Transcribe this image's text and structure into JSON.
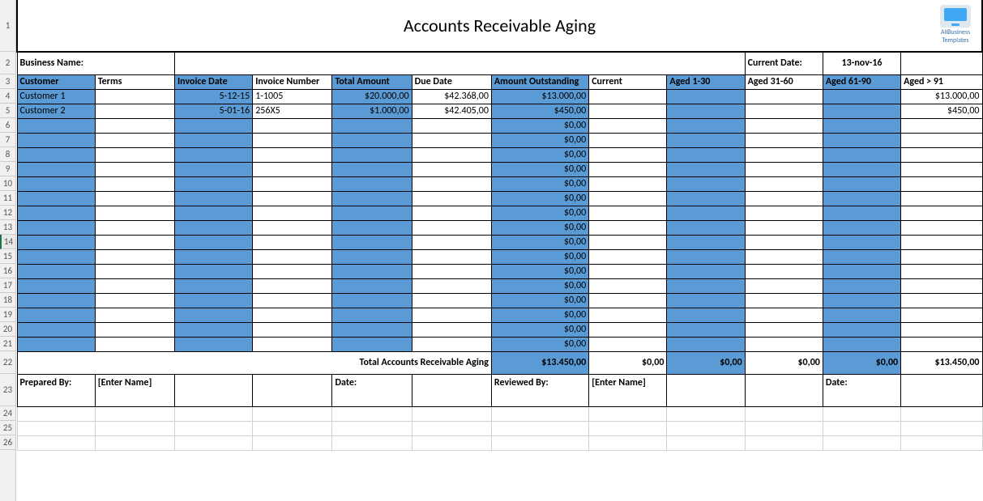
{
  "title": "Accounts Receivable Aging",
  "logo": {
    "line1": "AllBusiness",
    "line2": "Templates"
  },
  "business_name_label": "Business Name:",
  "current_date_label": "Current Date:",
  "current_date_value": "13-nov-16",
  "columns": {
    "customer": "Customer",
    "terms": "Terms",
    "invoice_date": "Invoice Date",
    "invoice_number": "Invoice Number",
    "total_amount": "Total Amount",
    "due_date": "Due Date",
    "amount_outstanding": "Amount Outstanding",
    "current": "Current",
    "aged_1_30": "Aged 1-30",
    "aged_31_60": "Aged 31-60",
    "aged_61_90": "Aged 61-90",
    "aged_gt_91": "Aged > 91"
  },
  "rows": [
    {
      "customer": "Customer 1",
      "terms": "",
      "invoice_date": "5-12-15",
      "invoice_number": "1-1005",
      "total_amount": "$20.000,00",
      "due_date": "$42.368,00",
      "amount_outstanding": "$13.000,00",
      "current": "",
      "aged_1_30": "",
      "aged_31_60": "",
      "aged_61_90": "",
      "aged_gt_91": "$13.000,00"
    },
    {
      "customer": "Customer 2",
      "terms": "",
      "invoice_date": "5-01-16",
      "invoice_number": "256X5",
      "total_amount": "$1.000,00",
      "due_date": "$42.405,00",
      "amount_outstanding": "$450,00",
      "current": "",
      "aged_1_30": "",
      "aged_31_60": "",
      "aged_61_90": "",
      "aged_gt_91": "$450,00"
    },
    {
      "customer": "",
      "terms": "",
      "invoice_date": "",
      "invoice_number": "",
      "total_amount": "",
      "due_date": "",
      "amount_outstanding": "$0,00",
      "current": "",
      "aged_1_30": "",
      "aged_31_60": "",
      "aged_61_90": "",
      "aged_gt_91": ""
    },
    {
      "customer": "",
      "terms": "",
      "invoice_date": "",
      "invoice_number": "",
      "total_amount": "",
      "due_date": "",
      "amount_outstanding": "$0,00",
      "current": "",
      "aged_1_30": "",
      "aged_31_60": "",
      "aged_61_90": "",
      "aged_gt_91": ""
    },
    {
      "customer": "",
      "terms": "",
      "invoice_date": "",
      "invoice_number": "",
      "total_amount": "",
      "due_date": "",
      "amount_outstanding": "$0,00",
      "current": "",
      "aged_1_30": "",
      "aged_31_60": "",
      "aged_61_90": "",
      "aged_gt_91": ""
    },
    {
      "customer": "",
      "terms": "",
      "invoice_date": "",
      "invoice_number": "",
      "total_amount": "",
      "due_date": "",
      "amount_outstanding": "$0,00",
      "current": "",
      "aged_1_30": "",
      "aged_31_60": "",
      "aged_61_90": "",
      "aged_gt_91": ""
    },
    {
      "customer": "",
      "terms": "",
      "invoice_date": "",
      "invoice_number": "",
      "total_amount": "",
      "due_date": "",
      "amount_outstanding": "$0,00",
      "current": "",
      "aged_1_30": "",
      "aged_31_60": "",
      "aged_61_90": "",
      "aged_gt_91": ""
    },
    {
      "customer": "",
      "terms": "",
      "invoice_date": "",
      "invoice_number": "",
      "total_amount": "",
      "due_date": "",
      "amount_outstanding": "$0,00",
      "current": "",
      "aged_1_30": "",
      "aged_31_60": "",
      "aged_61_90": "",
      "aged_gt_91": ""
    },
    {
      "customer": "",
      "terms": "",
      "invoice_date": "",
      "invoice_number": "",
      "total_amount": "",
      "due_date": "",
      "amount_outstanding": "$0,00",
      "current": "",
      "aged_1_30": "",
      "aged_31_60": "",
      "aged_61_90": "",
      "aged_gt_91": ""
    },
    {
      "customer": "",
      "terms": "",
      "invoice_date": "",
      "invoice_number": "",
      "total_amount": "",
      "due_date": "",
      "amount_outstanding": "$0,00",
      "current": "",
      "aged_1_30": "",
      "aged_31_60": "",
      "aged_61_90": "",
      "aged_gt_91": ""
    },
    {
      "customer": "",
      "terms": "",
      "invoice_date": "",
      "invoice_number": "",
      "total_amount": "",
      "due_date": "",
      "amount_outstanding": "$0,00",
      "current": "",
      "aged_1_30": "",
      "aged_31_60": "",
      "aged_61_90": "",
      "aged_gt_91": ""
    },
    {
      "customer": "",
      "terms": "",
      "invoice_date": "",
      "invoice_number": "",
      "total_amount": "",
      "due_date": "",
      "amount_outstanding": "$0,00",
      "current": "",
      "aged_1_30": "",
      "aged_31_60": "",
      "aged_61_90": "",
      "aged_gt_91": ""
    },
    {
      "customer": "",
      "terms": "",
      "invoice_date": "",
      "invoice_number": "",
      "total_amount": "",
      "due_date": "",
      "amount_outstanding": "$0,00",
      "current": "",
      "aged_1_30": "",
      "aged_31_60": "",
      "aged_61_90": "",
      "aged_gt_91": ""
    },
    {
      "customer": "",
      "terms": "",
      "invoice_date": "",
      "invoice_number": "",
      "total_amount": "",
      "due_date": "",
      "amount_outstanding": "$0,00",
      "current": "",
      "aged_1_30": "",
      "aged_31_60": "",
      "aged_61_90": "",
      "aged_gt_91": ""
    },
    {
      "customer": "",
      "terms": "",
      "invoice_date": "",
      "invoice_number": "",
      "total_amount": "",
      "due_date": "",
      "amount_outstanding": "$0,00",
      "current": "",
      "aged_1_30": "",
      "aged_31_60": "",
      "aged_61_90": "",
      "aged_gt_91": ""
    },
    {
      "customer": "",
      "terms": "",
      "invoice_date": "",
      "invoice_number": "",
      "total_amount": "",
      "due_date": "",
      "amount_outstanding": "$0,00",
      "current": "",
      "aged_1_30": "",
      "aged_31_60": "",
      "aged_61_90": "",
      "aged_gt_91": ""
    },
    {
      "customer": "",
      "terms": "",
      "invoice_date": "",
      "invoice_number": "",
      "total_amount": "",
      "due_date": "",
      "amount_outstanding": "$0,00",
      "current": "",
      "aged_1_30": "",
      "aged_31_60": "",
      "aged_61_90": "",
      "aged_gt_91": ""
    },
    {
      "customer": "",
      "terms": "",
      "invoice_date": "",
      "invoice_number": "",
      "total_amount": "",
      "due_date": "",
      "amount_outstanding": "$0,00",
      "current": "",
      "aged_1_30": "",
      "aged_31_60": "",
      "aged_61_90": "",
      "aged_gt_91": ""
    }
  ],
  "totals": {
    "label": "Total Accounts Receivable Aging",
    "amount_outstanding": "$13.450,00",
    "current": "$0,00",
    "aged_1_30": "$0,00",
    "aged_31_60": "$0,00",
    "aged_61_90": "$0,00",
    "aged_gt_91": "$13.450,00"
  },
  "footer": {
    "prepared_by_label": "Prepared By:",
    "prepared_by_value": "[Enter Name]",
    "date_label_1": "Date:",
    "reviewed_by_label": "Reviewed By:",
    "reviewed_by_value": "[Enter Name]",
    "date_label_2": "Date:"
  },
  "row_headers": [
    1,
    2,
    3,
    4,
    5,
    6,
    7,
    8,
    9,
    10,
    11,
    12,
    13,
    14,
    15,
    16,
    17,
    18,
    19,
    20,
    21,
    22,
    23,
    24,
    25,
    26
  ],
  "row_heights": {
    "r1": 64,
    "r2": 28,
    "r3": 18,
    "data": 18,
    "r22": 28,
    "r23": 40,
    "rest": 18
  },
  "colors": {
    "blue_fill": "#5b9bd5",
    "border": "#000000",
    "grid": "#d0d0d0",
    "rowhdr_bg": "#f0f0f0",
    "selected_row_accent": "#217346"
  },
  "blue_columns": [
    "customer",
    "invoice_date",
    "total_amount",
    "amount_outstanding",
    "aged_1_30",
    "aged_61_90"
  ]
}
